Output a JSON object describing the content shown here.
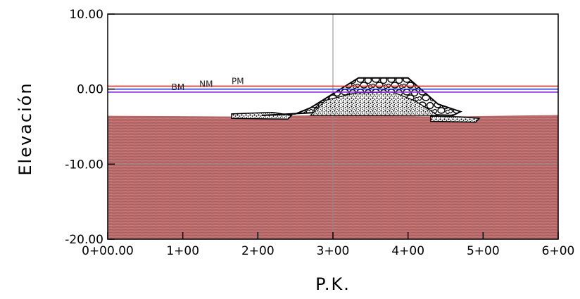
{
  "chart_data": {
    "type": "area",
    "xlabel": "P.K.",
    "ylabel": "Elevación",
    "xlim": [
      0,
      600
    ],
    "ylim": [
      -20,
      10
    ],
    "x_ticks": [
      {
        "value": 0,
        "label": "0+00.00"
      },
      {
        "value": 100,
        "label": "1+00"
      },
      {
        "value": 200,
        "label": "2+00"
      },
      {
        "value": 300,
        "label": "3+00"
      },
      {
        "value": 400,
        "label": "4+00"
      },
      {
        "value": 500,
        "label": "5+00"
      },
      {
        "value": 600,
        "label": "6+00"
      }
    ],
    "y_ticks": [
      {
        "value": 10,
        "label": "10.00"
      },
      {
        "value": 0,
        "label": "0.00"
      },
      {
        "value": -10,
        "label": "-10.00"
      },
      {
        "value": -20,
        "label": "-20.00"
      }
    ],
    "gridlines": {
      "x": [
        300
      ],
      "y": [
        -10
      ]
    },
    "water_levels": [
      {
        "name": "PM",
        "elevation": 0.4,
        "color": "#e0302a",
        "label_x": 165
      },
      {
        "name": "NM",
        "elevation": 0.0,
        "color": "#2a3bd8",
        "label_x": 122
      },
      {
        "name": "BM",
        "elevation": -0.4,
        "color": "#8a2be2",
        "label_x": 85
      }
    ],
    "seabed": {
      "color": "#b86868",
      "profile": [
        [
          0,
          -3.6
        ],
        [
          170,
          -3.7
        ],
        [
          300,
          -3.5
        ],
        [
          450,
          -3.7
        ],
        [
          600,
          -3.5
        ]
      ]
    },
    "breakwater": {
      "armor_layer": [
        [
          205,
          -3.5
        ],
        [
          250,
          -3.3
        ],
        [
          270,
          -2.5
        ],
        [
          334,
          1.5
        ],
        [
          400,
          1.5
        ],
        [
          440,
          -2.0
        ],
        [
          470,
          -3.0
        ],
        [
          460,
          -3.5
        ],
        [
          300,
          -3.0
        ]
      ],
      "core": [
        [
          270,
          -3.5
        ],
        [
          290,
          -1.5
        ],
        [
          330,
          -0.5
        ],
        [
          380,
          -0.4
        ],
        [
          410,
          -1.6
        ],
        [
          440,
          -3.5
        ]
      ],
      "toe_left": [
        [
          165,
          -3.3
        ],
        [
          220,
          -3.1
        ],
        [
          245,
          -3.5
        ],
        [
          240,
          -4.0
        ],
        [
          165,
          -3.9
        ]
      ],
      "toe_right": [
        [
          430,
          -3.6
        ],
        [
          470,
          -3.7
        ],
        [
          495,
          -3.9
        ],
        [
          490,
          -4.4
        ],
        [
          430,
          -4.3
        ]
      ]
    }
  }
}
